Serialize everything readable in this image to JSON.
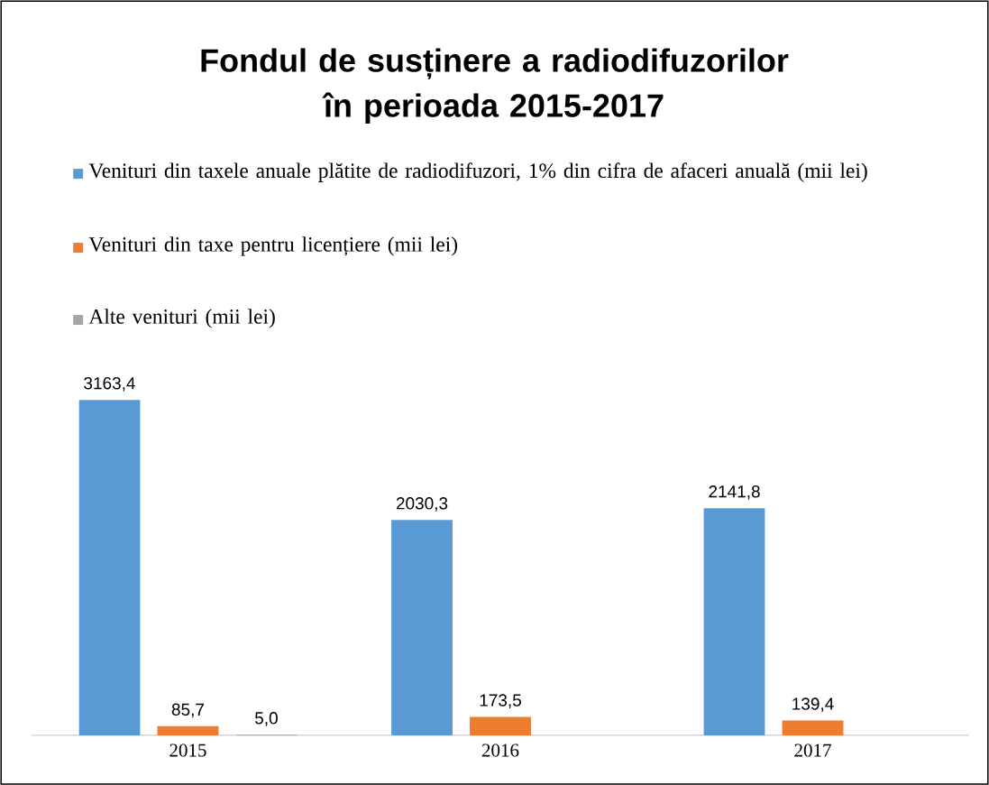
{
  "chart_data": {
    "type": "bar",
    "title": "Fondul de susținere a radiodifuzorilor în perioada 2015-2017",
    "categories": [
      "2015",
      "2016",
      "2017"
    ],
    "legend": "top",
    "series": [
      {
        "name": "Venituri din taxele anuale plătite de radiodifuzori, 1% din cifra de afaceri anuală (mii lei)",
        "color": "#5b9bd5",
        "values": [
          3163.4,
          2030.3,
          2141.8
        ],
        "value_labels": [
          "3163,4",
          "2030,3",
          "2141,8"
        ]
      },
      {
        "name": "Venituri din taxe pentru licențiere (mii lei)",
        "color": "#ed7d31",
        "values": [
          85.7,
          173.5,
          139.4
        ],
        "value_labels": [
          "85,7",
          "173,5",
          "139,4"
        ]
      },
      {
        "name": "Alte venituri (mii lei)",
        "color": "#a5a5a5",
        "values": [
          5.0,
          null,
          null
        ],
        "value_labels": [
          "5,0",
          null,
          null
        ]
      }
    ]
  }
}
